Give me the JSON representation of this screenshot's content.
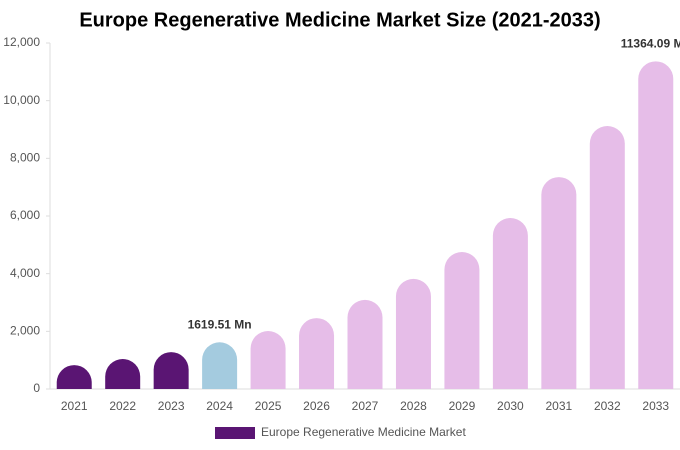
{
  "chart_data": {
    "type": "bar",
    "title": "Europe Regenerative Medicine Market Size (2021-2033)",
    "categories": [
      "2021",
      "2022",
      "2023",
      "2024",
      "2025",
      "2026",
      "2027",
      "2028",
      "2029",
      "2030",
      "2031",
      "2032",
      "2033"
    ],
    "series": [
      {
        "name": "Europe Regenerative Medicine Market",
        "color": "#5a1573",
        "values": [
          830,
          1040,
          1280,
          1619.51,
          2010,
          2460,
          3090,
          3820,
          4750,
          5930,
          7350,
          9120,
          11364.09
        ],
        "value_labels": [
          null,
          null,
          null,
          "1619.51 Mn",
          null,
          null,
          null,
          null,
          null,
          null,
          null,
          null,
          "11364.09 Mn"
        ],
        "colors": [
          "#5a1573",
          "#5a1573",
          "#5a1573",
          "#a4cbdf",
          "#e6bde8",
          "#e6bde8",
          "#e6bde8",
          "#e6bde8",
          "#e6bde8",
          "#e6bde8",
          "#e6bde8",
          "#e6bde8",
          "#e6bde8"
        ]
      }
    ],
    "ylim": [
      0,
      12000
    ],
    "yticks": [
      0,
      {
        "value": 2000,
        "label": "2,000"
      },
      {
        "value": 4000,
        "label": "4,000"
      },
      {
        "value": 6000,
        "label": "6,000"
      },
      {
        "value": 8000,
        "label": "8,000"
      },
      {
        "value": 10000,
        "label": "10,000"
      },
      {
        "value": 12000,
        "label": "12,000"
      }
    ],
    "grid": false
  }
}
